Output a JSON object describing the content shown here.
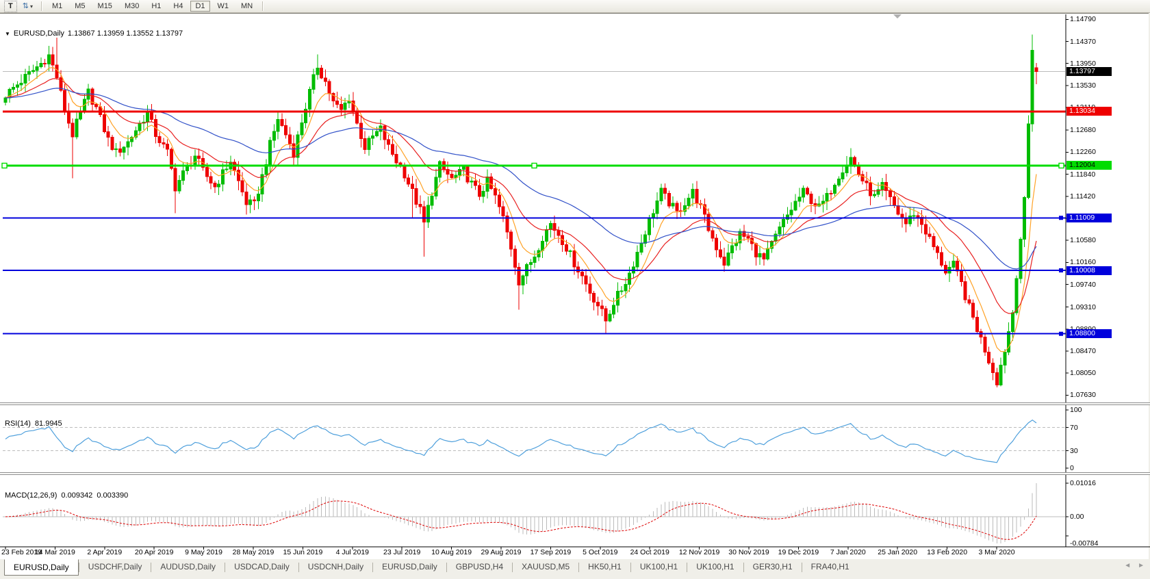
{
  "toolbar": {
    "text_tool_label": "T",
    "timeframes": [
      "M1",
      "M5",
      "M15",
      "M30",
      "H1",
      "H4",
      "D1",
      "W1",
      "MN"
    ],
    "active_timeframe": "D1"
  },
  "icons": {
    "chart_dropdown": "▼",
    "tile": "⇅",
    "caret": "▾",
    "tab_left": "◄",
    "tab_right": "►"
  },
  "chart": {
    "symbol": "EURUSD,Daily",
    "quote": "1.13867 1.13959 1.13552 1.13797"
  },
  "tabs": {
    "items": [
      "EURUSD,Daily",
      "USDCHF,Daily",
      "AUDUSD,Daily",
      "USDCAD,Daily",
      "USDCNH,Daily",
      "EURUSD,Daily",
      "GBPUSD,H4",
      "XAUUSD,M5",
      "HK50,H1",
      "UK100,H1",
      "UK100,H1",
      "GER30,H1",
      "FRA40,H1"
    ],
    "active_index": 0
  },
  "colors": {
    "bull": "#00BC00",
    "bear": "#EE0000",
    "ma_fast": "#FFA226",
    "ma_mid": "#E82020",
    "ma_slow": "#3050C8",
    "hline_red": "#EE0000",
    "hline_green": "#00DC00",
    "hline_blue": "#0000DC",
    "current_price_line": "#BBBBBB",
    "current_label_bg": "#000000",
    "rsi_line": "#4FA0DC",
    "level_dash": "#BBBBBB",
    "macd_hist": "#BBBBBB",
    "macd_signal": "#DD0000",
    "axis_line": "#000000",
    "shift_marker": "#B0B0B0"
  },
  "chart_data": {
    "type": "candlestick",
    "symbol": "EURUSD",
    "timeframe": "Daily",
    "last_ohlc": {
      "open": 1.13867,
      "high": 1.13959,
      "low": 1.13552,
      "close": 1.13797
    },
    "current_price": 1.13797,
    "current_price_label": {
      "text": "1.13797"
    },
    "n_candles": 262,
    "noise_amp": 0.0009,
    "wick_amp": 0.0016,
    "noise_end": 255,
    "close_anchors": [
      [
        0,
        1.1335
      ],
      [
        3,
        1.1355
      ],
      [
        6,
        1.1375
      ],
      [
        9,
        1.1395
      ],
      [
        11,
        1.141
      ],
      [
        13,
        1.137
      ],
      [
        15,
        1.1305
      ],
      [
        17,
        1.126
      ],
      [
        19,
        1.13
      ],
      [
        21,
        1.134
      ],
      [
        23,
        1.131
      ],
      [
        26,
        1.125
      ],
      [
        28,
        1.1225
      ],
      [
        31,
        1.1245
      ],
      [
        34,
        1.128
      ],
      [
        36,
        1.13
      ],
      [
        38,
        1.126
      ],
      [
        41,
        1.1225
      ],
      [
        43,
        1.116
      ],
      [
        45,
        1.1185
      ],
      [
        48,
        1.122
      ],
      [
        50,
        1.119
      ],
      [
        53,
        1.116
      ],
      [
        55,
        1.1185
      ],
      [
        57,
        1.121
      ],
      [
        59,
        1.117
      ],
      [
        61,
        1.113
      ],
      [
        63,
        1.1125
      ],
      [
        65,
        1.118
      ],
      [
        67,
        1.124
      ],
      [
        69,
        1.129
      ],
      [
        71,
        1.126
      ],
      [
        73,
        1.1225
      ],
      [
        75,
        1.1285
      ],
      [
        77,
        1.134
      ],
      [
        79,
        1.139
      ],
      [
        81,
        1.136
      ],
      [
        83,
        1.132
      ],
      [
        85,
        1.1305
      ],
      [
        87,
        1.133
      ],
      [
        89,
        1.128
      ],
      [
        91,
        1.1235
      ],
      [
        93,
        1.1255
      ],
      [
        95,
        1.127
      ],
      [
        97,
        1.1235
      ],
      [
        99,
        1.121
      ],
      [
        101,
        1.1185
      ],
      [
        103,
        1.115
      ],
      [
        105,
        1.1115
      ],
      [
        106,
        1.109
      ],
      [
        108,
        1.115
      ],
      [
        110,
        1.12
      ],
      [
        113,
        1.1175
      ],
      [
        116,
        1.119
      ],
      [
        118,
        1.1165
      ],
      [
        120,
        1.1145
      ],
      [
        122,
        1.117
      ],
      [
        124,
        1.114
      ],
      [
        126,
        1.11
      ],
      [
        128,
        1.1045
      ],
      [
        130,
        1.098
      ],
      [
        132,
        1.1005
      ],
      [
        134,
        1.103
      ],
      [
        136,
        1.1065
      ],
      [
        138,
        1.109
      ],
      [
        140,
        1.107
      ],
      [
        142,
        1.1045
      ],
      [
        144,
        1.1015
      ],
      [
        146,
        1.099
      ],
      [
        148,
        1.096
      ],
      [
        150,
        1.0935
      ],
      [
        152,
        1.0905
      ],
      [
        154,
        1.094
      ],
      [
        156,
        1.0965
      ],
      [
        158,
        1.0995
      ],
      [
        160,
        1.1035
      ],
      [
        162,
        1.1075
      ],
      [
        164,
        1.1115
      ],
      [
        166,
        1.115
      ],
      [
        168,
        1.113
      ],
      [
        170,
        1.111
      ],
      [
        172,
        1.113
      ],
      [
        174,
        1.115
      ],
      [
        176,
        1.112
      ],
      [
        178,
        1.108
      ],
      [
        180,
        1.1045
      ],
      [
        182,
        1.1015
      ],
      [
        184,
        1.1045
      ],
      [
        186,
        1.107
      ],
      [
        188,
        1.106
      ],
      [
        190,
        1.1035
      ],
      [
        192,
        1.102
      ],
      [
        194,
        1.105
      ],
      [
        196,
        1.108
      ],
      [
        198,
        1.1105
      ],
      [
        200,
        1.113
      ],
      [
        202,
        1.115
      ],
      [
        204,
        1.1135
      ],
      [
        206,
        1.112
      ],
      [
        208,
        1.114
      ],
      [
        210,
        1.117
      ],
      [
        212,
        1.1195
      ],
      [
        214,
        1.1215
      ],
      [
        216,
        1.1185
      ],
      [
        218,
        1.116
      ],
      [
        220,
        1.114
      ],
      [
        222,
        1.116
      ],
      [
        224,
        1.1135
      ],
      [
        226,
        1.111
      ],
      [
        228,
        1.109
      ],
      [
        230,
        1.111
      ],
      [
        232,
        1.109
      ],
      [
        234,
        1.106
      ],
      [
        236,
        1.103
      ],
      [
        238,
        1.1
      ],
      [
        240,
        1.101
      ],
      [
        242,
        1.0975
      ],
      [
        244,
        1.093
      ],
      [
        246,
        1.089
      ],
      [
        248,
        1.085
      ],
      [
        250,
        1.081
      ],
      [
        251,
        1.079
      ],
      [
        253,
        1.085
      ],
      [
        255,
        1.092
      ],
      [
        256,
        1.0985
      ],
      [
        257,
        1.106
      ],
      [
        258,
        1.114
      ],
      [
        259,
        1.128
      ],
      [
        260,
        1.142
      ],
      [
        261,
        1.13797
      ]
    ],
    "wick_overrides": {
      "13": {
        "h": 1.1447
      },
      "17": {
        "l": 1.1176
      },
      "43": {
        "l": 1.111
      },
      "61": {
        "l": 1.1107
      },
      "79": {
        "h": 1.1412
      },
      "103": {
        "l": 1.1101
      },
      "106": {
        "l": 1.1027
      },
      "130": {
        "l": 1.0926
      },
      "152": {
        "l": 1.0879
      },
      "251": {
        "l": 1.0778
      },
      "260": {
        "h": 1.145,
        "l": 1.1265
      },
      "261": {
        "o": 1.13867,
        "h": 1.13959,
        "l": 1.13552,
        "c": 1.13797
      }
    },
    "moving_averages": [
      {
        "period": 8,
        "color_key": "ma_fast"
      },
      {
        "period": 21,
        "color_key": "ma_mid"
      },
      {
        "period": 55,
        "color_key": "ma_slow"
      }
    ],
    "hlines": [
      {
        "price": 1.13034,
        "label": "1.13034",
        "color_key": "hline_red",
        "width": 3,
        "label_fg": "#FFFFFF",
        "selected": false,
        "handle": false
      },
      {
        "price": 1.12004,
        "label": "1.12004",
        "color_key": "hline_green",
        "width": 3,
        "label_fg": "#000000",
        "selected": true,
        "handle": false
      },
      {
        "price": 1.11009,
        "label": "1.11009",
        "color_key": "hline_blue",
        "width": 2,
        "label_fg": "#FFFFFF",
        "selected": false,
        "handle": true
      },
      {
        "price": 1.10008,
        "label": "1.10008",
        "color_key": "hline_blue",
        "width": 2,
        "label_fg": "#FFFFFF",
        "selected": false,
        "handle": true
      },
      {
        "price": 1.088,
        "label": "1.08800",
        "color_key": "hline_blue",
        "width": 2,
        "label_fg": "#FFFFFF",
        "selected": false,
        "handle": true
      }
    ],
    "price_axis": {
      "ticks": [
        1.1479,
        1.1437,
        1.1395,
        1.1353,
        1.1311,
        1.1268,
        1.1226,
        1.1184,
        1.1142,
        1.11,
        1.1058,
        1.1016,
        1.0974,
        1.0931,
        1.0889,
        1.0847,
        1.0805,
        1.0763
      ],
      "tick_labels": [
        "1.14790",
        "1.14370",
        "1.13950",
        "1.13530",
        "1.13110",
        "1.12680",
        "1.12260",
        "1.11840",
        "1.11420",
        "1.11000",
        "1.10580",
        "1.10160",
        "1.09740",
        "1.09310",
        "1.08890",
        "1.08470",
        "1.08050",
        "1.07630"
      ]
    },
    "date_axis": {
      "labels": [
        "23 Feb 2019",
        "14 Mar 2019",
        "2 Apr 2019",
        "20 Apr 2019",
        "9 May 2019",
        "28 May 2019",
        "15 Jun 2019",
        "4 Jul 2019",
        "23 Jul 2019",
        "10 Aug 2019",
        "29 Aug 2019",
        "17 Sep 2019",
        "5 Oct 2019",
        "24 Oct 2019",
        "12 Nov 2019",
        "30 Nov 2019",
        "19 Dec 2019",
        "7 Jan 2020",
        "25 Jan 2020",
        "13 Feb 2020",
        "3 Mar 2020"
      ]
    },
    "rsi": {
      "name": "RSI(14)",
      "value": "81.9945",
      "period": 14,
      "ticks": [
        100,
        70,
        30,
        0
      ],
      "tick_labels": [
        "100",
        "70",
        "30",
        "0"
      ],
      "levels": [
        70,
        30
      ]
    },
    "macd": {
      "name": "MACD(12,26,9)",
      "value_main": "0.009342",
      "value_signal": "0.003390",
      "fast": 12,
      "slow": 26,
      "signal": 9,
      "ticks": [
        0.01016,
        0,
        -0.00784
      ],
      "tick_labels": [
        "0.01016",
        "0.00",
        "-0.00784"
      ]
    }
  }
}
